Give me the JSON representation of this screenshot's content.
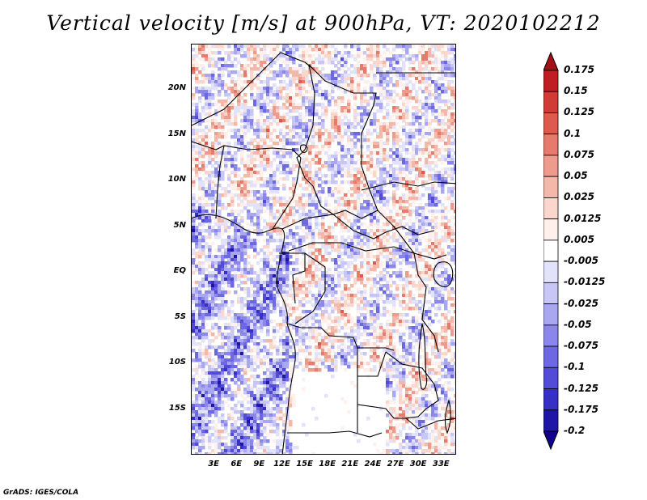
{
  "title": "Vertical velocity [m/s] at 900hPa, VT: 2020102212",
  "footer": "GrADS: IGES/COLA",
  "map": {
    "lon_range": [
      0,
      35
    ],
    "lat_range": [
      -20,
      25
    ],
    "lat_labels": [
      {
        "text": "20N",
        "lat": 20
      },
      {
        "text": "15N",
        "lat": 15
      },
      {
        "text": "10N",
        "lat": 10
      },
      {
        "text": "5N",
        "lat": 5
      },
      {
        "text": "EQ",
        "lat": 0
      },
      {
        "text": "5S",
        "lat": -5
      },
      {
        "text": "10S",
        "lat": -10
      },
      {
        "text": "15S",
        "lat": -15
      }
    ],
    "lon_labels": [
      {
        "text": "3E",
        "lon": 3
      },
      {
        "text": "6E",
        "lon": 6
      },
      {
        "text": "9E",
        "lon": 9
      },
      {
        "text": "12E",
        "lon": 12
      },
      {
        "text": "15E",
        "lon": 15
      },
      {
        "text": "18E",
        "lon": 18
      },
      {
        "text": "21E",
        "lon": 21
      },
      {
        "text": "24E",
        "lon": 24
      },
      {
        "text": "27E",
        "lon": 27
      },
      {
        "text": "30E",
        "lon": 30
      },
      {
        "text": "33E",
        "lon": 33
      }
    ]
  },
  "colorbar": {
    "labels": [
      "0.175",
      "0.15",
      "0.125",
      "0.1",
      "0.075",
      "0.05",
      "0.025",
      "0.0125",
      "0.005",
      "-0.005",
      "-0.0125",
      "-0.025",
      "-0.05",
      "-0.075",
      "-0.1",
      "-0.125",
      "-0.175",
      "-0.2"
    ],
    "colors": [
      "#a50f15",
      "#c01e22",
      "#d23b35",
      "#de5a4e",
      "#e67a6c",
      "#ee9a8c",
      "#f4b8ab",
      "#fad6cd",
      "#fff0ec",
      "#ffffff",
      "#e2e2fb",
      "#c7c6f6",
      "#a9a7f0",
      "#8a86ea",
      "#6d68e2",
      "#514bd8",
      "#3630c6",
      "#1f16a8",
      "#110088"
    ]
  }
}
